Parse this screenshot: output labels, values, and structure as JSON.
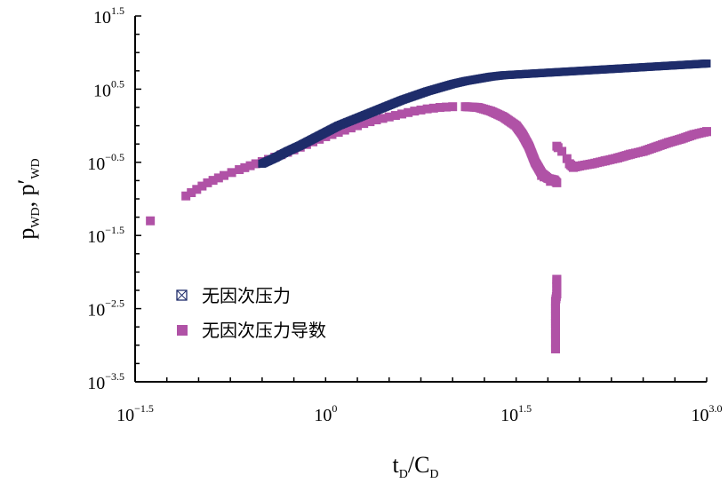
{
  "chart_data": {
    "type": "scatter",
    "x_scale": "log10",
    "y_scale": "log10",
    "xlim": [
      -1.5,
      3.0
    ],
    "ylim": [
      -3.5,
      1.5
    ],
    "x_ticks": [
      {
        "base": "10",
        "exp": "−1.5",
        "value": -1.5
      },
      {
        "base": "10",
        "exp": "0",
        "value": 0
      },
      {
        "base": "10",
        "exp": "1.5",
        "value": 1.5
      },
      {
        "base": "10",
        "exp": "3.0",
        "value": 3.0
      }
    ],
    "y_ticks": [
      {
        "base": "10",
        "exp": "1.5",
        "value": 1.5
      },
      {
        "base": "10",
        "exp": "0.5",
        "value": 0.5
      },
      {
        "base": "10",
        "exp": "−0.5",
        "value": -0.5
      },
      {
        "base": "10",
        "exp": "−1.5",
        "value": -1.5
      },
      {
        "base": "10",
        "exp": "−2.5",
        "value": -2.5
      },
      {
        "base": "10",
        "exp": "−3.5",
        "value": -3.5
      }
    ],
    "xlabel": {
      "main1": "t",
      "sub1": "D",
      "slash": "/",
      "main2": "C",
      "sub2": "D"
    },
    "ylabel": {
      "main1": "p",
      "sub1": "WD",
      "comma": ", ",
      "main2": "p′",
      "sub2": "WD"
    },
    "legend_position": "lower-left",
    "grid": false,
    "series": [
      {
        "name": "无因次压力",
        "color": "#1f2d6b",
        "marker": "boxed-x",
        "points": [
          [
            -0.5,
            -0.52
          ],
          [
            -0.4,
            -0.44
          ],
          [
            -0.3,
            -0.35
          ],
          [
            -0.2,
            -0.27
          ],
          [
            -0.1,
            -0.18
          ],
          [
            0.0,
            -0.09
          ],
          [
            0.1,
            0.0
          ],
          [
            0.2,
            0.07
          ],
          [
            0.3,
            0.14
          ],
          [
            0.4,
            0.21
          ],
          [
            0.5,
            0.28
          ],
          [
            0.6,
            0.35
          ],
          [
            0.7,
            0.41
          ],
          [
            0.8,
            0.47
          ],
          [
            0.9,
            0.52
          ],
          [
            1.0,
            0.57
          ],
          [
            1.1,
            0.61
          ],
          [
            1.2,
            0.64
          ],
          [
            1.3,
            0.67
          ],
          [
            1.4,
            0.69
          ],
          [
            1.5,
            0.7
          ],
          [
            1.6,
            0.71
          ],
          [
            1.7,
            0.72
          ],
          [
            1.8,
            0.73
          ],
          [
            1.9,
            0.74
          ],
          [
            2.0,
            0.75
          ],
          [
            2.1,
            0.76
          ],
          [
            2.2,
            0.77
          ],
          [
            2.3,
            0.78
          ],
          [
            2.4,
            0.79
          ],
          [
            2.5,
            0.8
          ],
          [
            2.6,
            0.81
          ],
          [
            2.7,
            0.82
          ],
          [
            2.8,
            0.83
          ],
          [
            2.9,
            0.84
          ],
          [
            3.0,
            0.85
          ]
        ]
      },
      {
        "name": "无因次压力导数",
        "color": "#b052a6",
        "marker": "square",
        "points": [
          [
            -1.38,
            -1.3
          ],
          [
            -1.1,
            -0.96
          ],
          [
            -0.93,
            -0.78
          ],
          [
            -0.8,
            -0.68
          ],
          [
            -0.68,
            -0.6
          ],
          [
            -0.55,
            -0.52
          ],
          [
            -0.4,
            -0.43
          ],
          [
            -0.25,
            -0.33
          ],
          [
            -0.1,
            -0.22
          ],
          [
            0.0,
            -0.15
          ],
          [
            0.1,
            -0.09
          ],
          [
            0.2,
            -0.03
          ],
          [
            0.3,
            0.03
          ],
          [
            0.4,
            0.08
          ],
          [
            0.5,
            0.12
          ],
          [
            0.6,
            0.16
          ],
          [
            0.7,
            0.2
          ],
          [
            0.8,
            0.23
          ],
          [
            0.9,
            0.25
          ],
          [
            1.0,
            0.26
          ],
          [
            1.1,
            0.26
          ],
          [
            1.2,
            0.25
          ],
          [
            1.3,
            0.2
          ],
          [
            1.4,
            0.12
          ],
          [
            1.5,
            0.0
          ],
          [
            1.55,
            -0.12
          ],
          [
            1.6,
            -0.28
          ],
          [
            1.65,
            -0.5
          ],
          [
            1.7,
            -0.65
          ],
          [
            1.75,
            -0.72
          ],
          [
            1.8,
            -0.74
          ],
          [
            1.82,
            -0.78
          ],
          [
            1.7,
            -0.68
          ],
          [
            1.72,
            -0.7
          ],
          [
            1.77,
            -0.76
          ],
          [
            1.82,
            -0.28
          ],
          [
            1.83,
            -0.3
          ],
          [
            1.86,
            -0.35
          ],
          [
            1.9,
            -0.45
          ],
          [
            1.92,
            -0.52
          ],
          [
            1.95,
            -0.57
          ],
          [
            2.0,
            -0.55
          ],
          [
            2.1,
            -0.52
          ],
          [
            2.2,
            -0.48
          ],
          [
            2.3,
            -0.44
          ],
          [
            2.4,
            -0.39
          ],
          [
            2.5,
            -0.35
          ],
          [
            2.6,
            -0.29
          ],
          [
            2.7,
            -0.23
          ],
          [
            2.8,
            -0.18
          ],
          [
            2.9,
            -0.12
          ],
          [
            3.0,
            -0.08
          ],
          [
            1.82,
            -2.1
          ],
          [
            1.82,
            -2.2
          ],
          [
            1.82,
            -2.3
          ],
          [
            1.81,
            -2.4
          ],
          [
            1.81,
            -2.5
          ],
          [
            1.81,
            -2.6
          ],
          [
            1.81,
            -2.7
          ],
          [
            1.81,
            -2.85
          ],
          [
            1.81,
            -3.05
          ]
        ]
      }
    ]
  }
}
